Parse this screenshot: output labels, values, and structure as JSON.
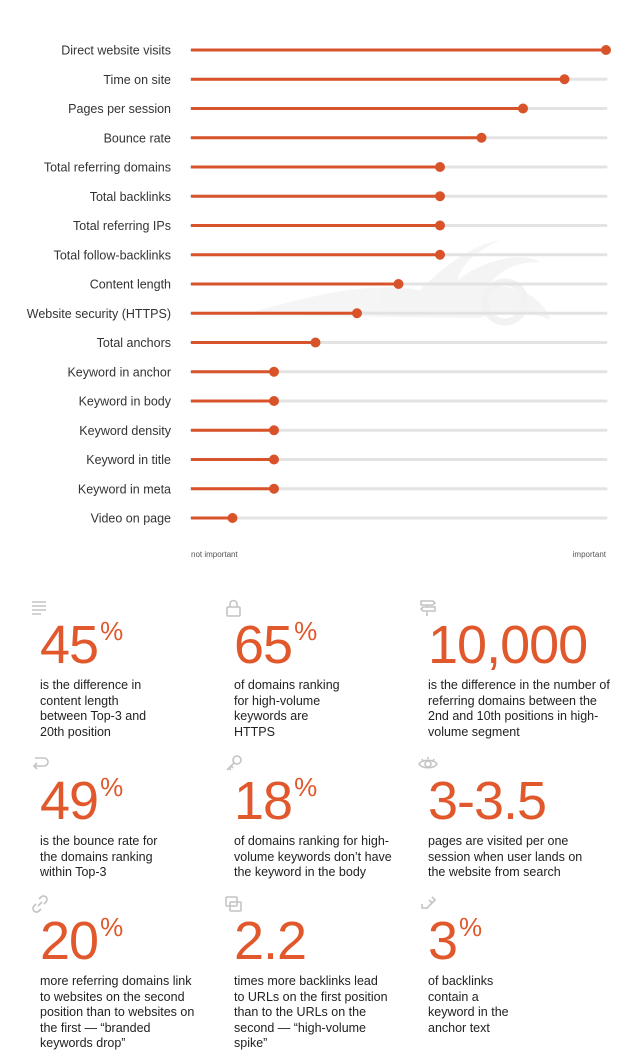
{
  "chart_data": {
    "type": "lollipop",
    "categories": [
      "Direct website visits",
      "Time on site",
      "Pages per session",
      "Bounce rate",
      "Total referring domains",
      "Total backlinks",
      "Total referring IPs",
      "Total follow-backlinks",
      "Content length",
      "Website security (HTTPS)",
      "Total anchors",
      "Keyword in anchor",
      "Keyword in body",
      "Keyword density",
      "Keyword in title",
      "Keyword in meta",
      "Video on page"
    ],
    "values": [
      1.0,
      0.9,
      0.8,
      0.7,
      0.6,
      0.6,
      0.6,
      0.6,
      0.5,
      0.4,
      0.3,
      0.2,
      0.2,
      0.2,
      0.2,
      0.2,
      0.1
    ],
    "xlim": [
      0,
      1
    ],
    "x_min_label": "not important",
    "x_max_label": "important",
    "colors": {
      "accent": "#d9532a",
      "track": "#e3e3e3"
    }
  },
  "stats": [
    {
      "icon": "list-icon",
      "number": "45",
      "suffix": "%",
      "text": "is the difference in content length between Top-3 and 20th position"
    },
    {
      "icon": "lock-icon",
      "number": "65",
      "suffix": "%",
      "text": "of domains ranking for high-volume keywords are HTTPS"
    },
    {
      "icon": "signpost-icon",
      "number": "10,000",
      "suffix": "",
      "text": "is the difference in the number of referring domains between the 2nd and 10th positions in high-volume segment"
    },
    {
      "icon": "return-icon",
      "number": "49",
      "suffix": "%",
      "text": "is the bounce rate for the domains ranking within Top-3"
    },
    {
      "icon": "key-icon",
      "number": "18",
      "suffix": "%",
      "text": "of domains ranking for high-volume keywords don’t have the keyword in the body"
    },
    {
      "icon": "eye-icon",
      "number": "3-3.5",
      "suffix": "",
      "text": "pages are visited per one session when user lands on the website from search"
    },
    {
      "icon": "link-icon",
      "number": "20",
      "suffix": "%",
      "text": "more referring domains link to websites on the second position than to websites on the first — “branded keywords drop”"
    },
    {
      "icon": "windows-icon",
      "number": "2.2",
      "suffix": "",
      "text": "times more backlinks lead to URLs on the first position than to the URLs on the second — “high-volume spike”"
    },
    {
      "icon": "anchor-icon",
      "number": "3",
      "suffix": "%",
      "text": "of backlinks contain a keyword in the anchor text"
    }
  ]
}
